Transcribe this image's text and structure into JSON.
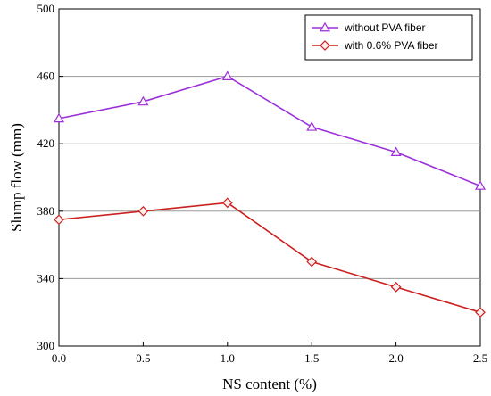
{
  "chart_data": {
    "type": "line",
    "xlabel": "NS content (%)",
    "ylabel": "Slump flow (mm)",
    "xlim": [
      0.0,
      2.5
    ],
    "ylim": [
      300,
      500
    ],
    "xticks": [
      "0.0",
      "0.5",
      "1.0",
      "1.5",
      "2.0",
      "2.5"
    ],
    "yticks": [
      "300",
      "340",
      "380",
      "420",
      "460",
      "500"
    ],
    "x": [
      0.0,
      0.5,
      1.0,
      1.5,
      2.0,
      2.5
    ],
    "grid": "horizontal",
    "legend_position": "top-right",
    "series": [
      {
        "name": "without PVA fiber",
        "values": [
          435,
          445,
          460,
          430,
          415,
          395
        ],
        "color": "#9b30d9",
        "marker": "triangle"
      },
      {
        "name": "with 0.6% PVA fiber",
        "values": [
          375,
          380,
          385,
          350,
          335,
          320
        ],
        "color": "#cc1f1f",
        "marker": "diamond"
      }
    ]
  }
}
